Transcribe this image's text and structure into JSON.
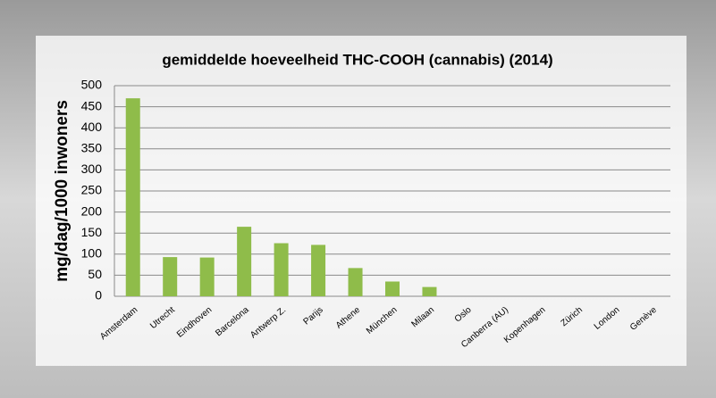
{
  "chart_data": {
    "type": "bar",
    "title": "gemiddelde hoeveelheid THC-COOH (cannabis) (2014)",
    "y_label": "mg/dag/1000 inwoners",
    "categories": [
      "Amsterdam",
      "Utrecht",
      "Eindhoven",
      "Barcelona",
      "Antwerp Z.",
      "Parijs",
      "Athene",
      "München",
      "Milaan",
      "Oslo",
      "Canberra (AU)",
      "Kopenhagen",
      "Zürich",
      "London",
      "Genève"
    ],
    "values": [
      470,
      93,
      92,
      165,
      126,
      122,
      67,
      35,
      22,
      null,
      null,
      null,
      null,
      null,
      null
    ],
    "color": "#8fbc4a",
    "ylim": [
      0,
      500
    ],
    "yticks": [
      0,
      50,
      100,
      150,
      200,
      250,
      300,
      350,
      400,
      450,
      500
    ],
    "grid": true
  }
}
